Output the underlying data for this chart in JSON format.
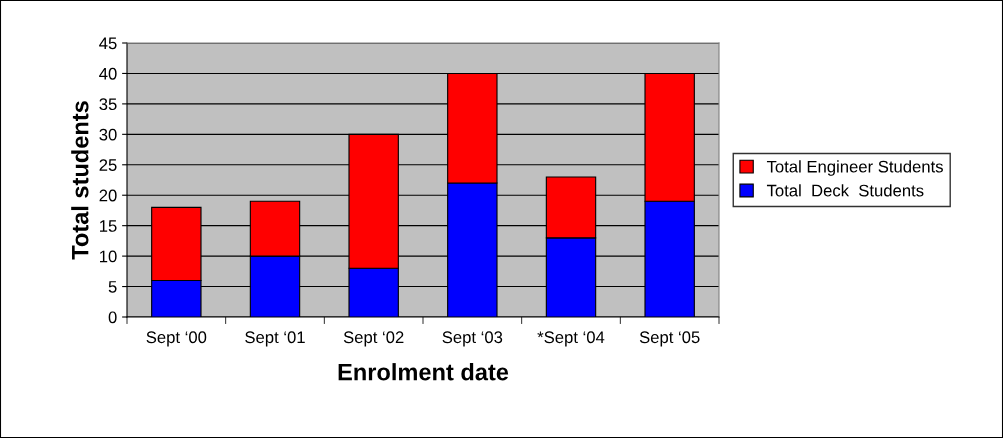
{
  "chart_data": {
    "type": "bar",
    "stacked": true,
    "xlabel": "Enrolment date",
    "ylabel": "Total students",
    "categories": [
      "Sept ‘00",
      "Sept ‘01",
      "Sept ‘02",
      "Sept ‘03",
      "*Sept ‘04",
      "Sept ‘05"
    ],
    "series": [
      {
        "name": "Total  Deck  Students",
        "color": "#0000ff",
        "values": [
          6,
          10,
          8,
          22,
          13,
          19
        ]
      },
      {
        "name": "Total Engineer Students",
        "color": "#ff0000",
        "values": [
          12,
          9,
          22,
          18,
          10,
          21
        ]
      }
    ],
    "ylim": [
      0,
      45
    ],
    "yticks": [
      0,
      5,
      10,
      15,
      20,
      25,
      30,
      35,
      40,
      45
    ],
    "grid": "y",
    "legend": "right"
  }
}
